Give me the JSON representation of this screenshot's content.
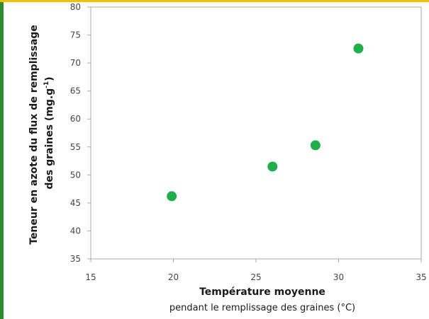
{
  "colors": {
    "marker": "#1fae4a",
    "left_accent": "#2e8b2e",
    "top_accent": "#f2c200",
    "axis": "#aaaaaa"
  },
  "chart_data": {
    "type": "scatter",
    "title": "",
    "xlabel_line1": "Température moyenne",
    "xlabel_line2": "pendant le remplissage des graines (°C)",
    "ylabel_line1": "Teneur en azote du flux de remplissage",
    "ylabel_line2": "des graines (mg.g",
    "ylabel_sup": "-1",
    "ylabel_end": ")",
    "xlim": [
      15,
      35
    ],
    "ylim": [
      35,
      80
    ],
    "xticks": [
      "15",
      "20",
      "25",
      "30",
      "35"
    ],
    "yticks": [
      "35",
      "40",
      "45",
      "50",
      "55",
      "60",
      "65",
      "70",
      "75",
      "80"
    ],
    "grid": false,
    "legend": "none",
    "series": [
      {
        "x": [
          19.9,
          26.0,
          28.6,
          31.2
        ],
        "y": [
          46.2,
          51.5,
          55.3,
          72.6
        ]
      }
    ]
  }
}
